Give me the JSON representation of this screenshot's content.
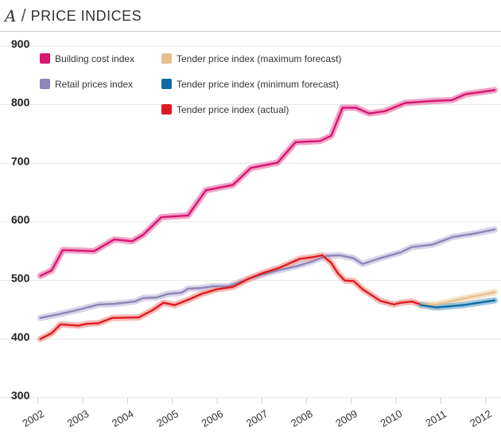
{
  "header": {
    "letter": "A",
    "slash": "/",
    "title": "PRICE INDICES"
  },
  "chart_data": {
    "type": "line",
    "title": "PRICE INDICES",
    "xlabel": "",
    "ylabel": "",
    "xlim": [
      2002,
      2012.2
    ],
    "ylim": [
      300,
      900
    ],
    "yticks": [
      300,
      400,
      500,
      600,
      700,
      800,
      900
    ],
    "xticks": [
      2002,
      2003,
      2004,
      2005,
      2006,
      2007,
      2008,
      2009,
      2010,
      2011,
      2012
    ],
    "grid": "horizontal",
    "legend": "top-left",
    "series": [
      {
        "name": "Building cost index",
        "color": "#d6166f",
        "band_color": "#ea86b6",
        "points": [
          [
            2002.05,
            508
          ],
          [
            2002.3,
            517
          ],
          [
            2002.55,
            552
          ],
          [
            2003.25,
            550
          ],
          [
            2003.7,
            570
          ],
          [
            2004.1,
            567
          ],
          [
            2004.35,
            578
          ],
          [
            2004.75,
            608
          ],
          [
            2005.35,
            611
          ],
          [
            2005.75,
            654
          ],
          [
            2006.35,
            663
          ],
          [
            2006.75,
            692
          ],
          [
            2007.35,
            701
          ],
          [
            2007.75,
            736
          ],
          [
            2008.3,
            738
          ],
          [
            2008.55,
            747
          ],
          [
            2008.8,
            795
          ],
          [
            2009.1,
            795
          ],
          [
            2009.4,
            785
          ],
          [
            2009.75,
            789
          ],
          [
            2010.2,
            803
          ],
          [
            2010.75,
            806
          ],
          [
            2011.25,
            808
          ],
          [
            2011.55,
            818
          ],
          [
            2012.2,
            825
          ]
        ]
      },
      {
        "name": "Retail prices index",
        "color": "#8e85b6",
        "band_color": "#ccc6e2",
        "points": [
          [
            2002.05,
            436
          ],
          [
            2002.5,
            443
          ],
          [
            2002.9,
            450
          ],
          [
            2003.35,
            459
          ],
          [
            2003.7,
            460
          ],
          [
            2004.15,
            464
          ],
          [
            2004.35,
            470
          ],
          [
            2004.65,
            471
          ],
          [
            2004.9,
            477
          ],
          [
            2005.2,
            479
          ],
          [
            2005.35,
            486
          ],
          [
            2005.65,
            487
          ],
          [
            2005.9,
            490
          ],
          [
            2006.25,
            490
          ],
          [
            2006.6,
            500
          ],
          [
            2007.0,
            510
          ],
          [
            2007.4,
            518
          ],
          [
            2007.8,
            525
          ],
          [
            2008.1,
            532
          ],
          [
            2008.45,
            542
          ],
          [
            2008.75,
            543
          ],
          [
            2009.05,
            538
          ],
          [
            2009.25,
            528
          ],
          [
            2009.6,
            537
          ],
          [
            2010.1,
            548
          ],
          [
            2010.35,
            557
          ],
          [
            2010.8,
            561
          ],
          [
            2011.25,
            574
          ],
          [
            2011.75,
            580
          ],
          [
            2012.2,
            587
          ]
        ]
      },
      {
        "name": "Tender price index (actual)",
        "color": "#e01a22",
        "band_color": "#f1a49b",
        "points": [
          [
            2002.05,
            400
          ],
          [
            2002.3,
            410
          ],
          [
            2002.5,
            425
          ],
          [
            2002.9,
            423
          ],
          [
            2003.1,
            426
          ],
          [
            2003.35,
            427
          ],
          [
            2003.65,
            436
          ],
          [
            2004.25,
            437
          ],
          [
            2004.55,
            449
          ],
          [
            2004.8,
            462
          ],
          [
            2005.05,
            458
          ],
          [
            2005.35,
            467
          ],
          [
            2005.65,
            477
          ],
          [
            2006.0,
            485
          ],
          [
            2006.35,
            489
          ],
          [
            2006.7,
            503
          ],
          [
            2007.0,
            512
          ],
          [
            2007.4,
            522
          ],
          [
            2007.85,
            537
          ],
          [
            2008.15,
            540
          ],
          [
            2008.35,
            543
          ],
          [
            2008.55,
            530
          ],
          [
            2008.7,
            512
          ],
          [
            2008.85,
            500
          ],
          [
            2009.05,
            499
          ],
          [
            2009.25,
            485
          ],
          [
            2009.65,
            465
          ],
          [
            2009.95,
            459
          ],
          [
            2010.1,
            462
          ],
          [
            2010.35,
            464
          ],
          [
            2010.55,
            459
          ]
        ]
      },
      {
        "name": "Tender price index (maximum forecast)",
        "color": "#e8bf8c",
        "band_color": "#f2d9b4",
        "points": [
          [
            2010.55,
            459
          ],
          [
            2010.9,
            459
          ],
          [
            2011.5,
            469
          ],
          [
            2012.2,
            480
          ]
        ]
      },
      {
        "name": "Tender price index (minimum forecast)",
        "color": "#0f6ca2",
        "band_color": "#7fb3d6",
        "points": [
          [
            2010.55,
            458
          ],
          [
            2010.9,
            454
          ],
          [
            2011.5,
            458
          ],
          [
            2012.2,
            466
          ]
        ]
      }
    ],
    "legend_entries": [
      "Building cost index",
      "Retail prices index",
      "Tender price index (maximum forecast)",
      "Tender price index (minimum forecast)",
      "Tender price index (actual)"
    ]
  }
}
